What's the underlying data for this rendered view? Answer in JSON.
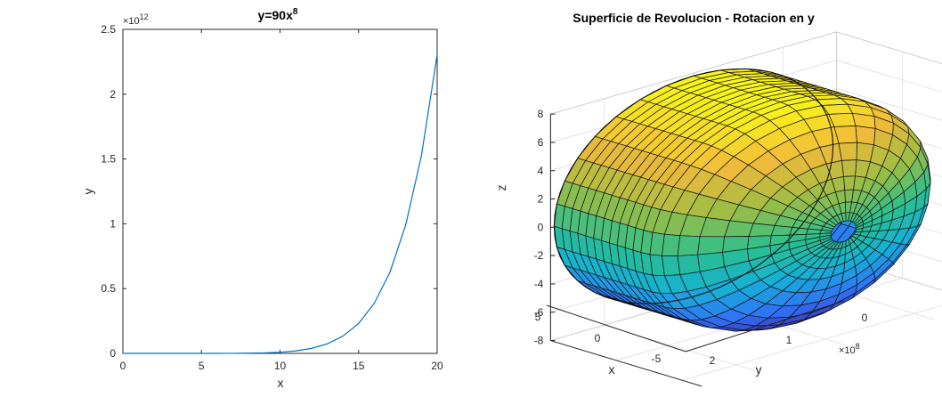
{
  "chart_data": [
    {
      "type": "line",
      "title": "y=90x",
      "title_superscript": "8",
      "xlabel": "x",
      "ylabel": "y",
      "xlim": [
        0,
        20
      ],
      "ylim": [
        0,
        2.5
      ],
      "y_multiplier": "×10",
      "y_multiplier_exponent": "12",
      "xticks": [
        0,
        5,
        10,
        15,
        20
      ],
      "yticks": [
        0,
        0.5,
        1,
        1.5,
        2,
        2.5
      ],
      "xtick_labels": [
        "0",
        "5",
        "10",
        "15",
        "20"
      ],
      "ytick_labels": [
        "0",
        "0.5",
        "1",
        "1.5",
        "2",
        "2.5"
      ],
      "x": [
        0,
        1,
        2,
        3,
        4,
        5,
        6,
        7,
        8,
        9,
        10,
        11,
        12,
        13,
        14,
        15,
        16,
        17,
        18,
        19,
        20
      ],
      "y": [
        0,
        9e-11,
        2.304e-08,
        5.9049e-07,
        5.8982e-06,
        3.515625e-05,
        0.00015116544,
        0.00051883209,
        0.00150994944,
        0.00387420489,
        0.009,
        0.019,
        0.0387,
        0.0734,
        0.1328,
        0.2307,
        0.3865,
        0.6278,
        0.9919,
        1.5277,
        2.304
      ],
      "line_color": "#0072bd",
      "grid": false
    },
    {
      "type": "surface",
      "title": "Superficie de Revolucion - Rotacion en y",
      "xlabel": "x",
      "ylabel": "y",
      "zlabel": "z",
      "x_tick_labels": [
        "5",
        "0",
        "-5"
      ],
      "y_tick_labels": [
        "0",
        "1",
        "2"
      ],
      "y_multiplier": "×10",
      "y_multiplier_exponent": "8",
      "z_tick_labels": [
        "8",
        "6",
        "4",
        "2",
        "0",
        "-2",
        "-4",
        "-6",
        "-8"
      ],
      "radius_range": [
        0,
        8
      ],
      "y_range": [
        0,
        2.3
      ],
      "grid": true,
      "colormap": [
        "#3e26a8",
        "#2f74f8",
        "#16b0d6",
        "#29bf8f",
        "#9bbd44",
        "#f2ba3a",
        "#f9fb15"
      ]
    }
  ]
}
